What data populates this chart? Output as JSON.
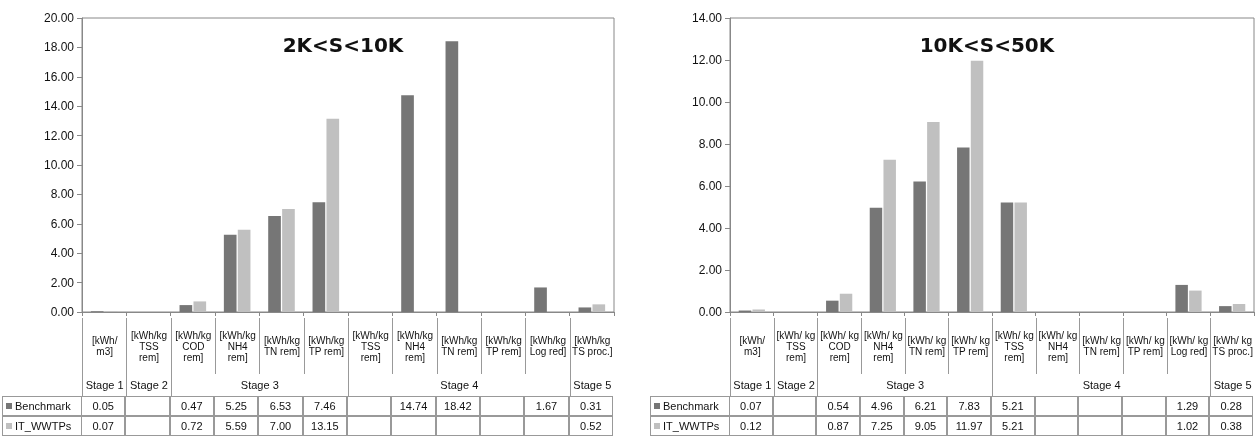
{
  "chart_data": [
    {
      "type": "bar",
      "title": "2K<S<10K",
      "categories": [
        "[kWh/ m3]",
        "[kWh/kg TSS rem]",
        "[kWh/kg COD rem]",
        "[kWh/kg NH4 rem]",
        "[kWh/kg TN rem]",
        "[kWh/kg TP rem]",
        "[kWh/kg TSS rem]",
        "[kWh/kg NH4 rem]",
        "[kWh/kg TN rem]",
        "[kWh/kg TP rem]",
        "[kWh/kg Log red]",
        "[kWh/kg TS proc.]"
      ],
      "series": [
        {
          "name": "Benchmark",
          "color": "#767676",
          "values": [
            0.05,
            null,
            0.47,
            5.25,
            6.53,
            7.46,
            null,
            14.74,
            18.42,
            null,
            1.67,
            0.31
          ],
          "value_labels": [
            "0.05",
            null,
            "0.47",
            "5.25",
            "6.53",
            "7.46",
            null,
            "14.74",
            "18.42",
            null,
            "1.67",
            "0.31"
          ]
        },
        {
          "name": "IT_WWTPs",
          "color": "#c0c0c0",
          "values": [
            0.07,
            null,
            0.72,
            5.59,
            7.0,
            13.15,
            null,
            null,
            null,
            null,
            null,
            0.52
          ],
          "value_labels": [
            "0.07",
            null,
            "0.72",
            "5.59",
            "7.00",
            "13.15",
            null,
            null,
            null,
            null,
            null,
            "0.52"
          ]
        }
      ],
      "ylim": [
        0,
        20
      ],
      "yticks": [
        {
          "value": 0,
          "label": "0.00"
        },
        {
          "value": 2,
          "label": "2.00"
        },
        {
          "value": 4,
          "label": "4.00"
        },
        {
          "value": 6,
          "label": "6.00"
        },
        {
          "value": 8,
          "label": "8.00"
        },
        {
          "value": 10,
          "label": "10.00"
        },
        {
          "value": 12,
          "label": "12.00"
        },
        {
          "value": 14,
          "label": "14.00"
        },
        {
          "value": 16,
          "label": "16.00"
        },
        {
          "value": 18,
          "label": "18.00"
        },
        {
          "value": 20,
          "label": "20.00"
        }
      ],
      "legend": "bottom",
      "annotations": [
        "Stage 1",
        "Stage 2",
        "Stage 3",
        "Stage 4",
        "Stage 5"
      ]
    },
    {
      "type": "bar",
      "title": "10K<S<50K",
      "categories": [
        "[kWh/ m3]",
        "[kWh/ kg TSS rem]",
        "[kWh/ kg COD rem]",
        "[kWh/ kg NH4 rem]",
        "[kWh/ kg TN rem]",
        "[kWh/ kg TP rem]",
        "[kWh/ kg TSS rem]",
        "[kWh/ kg NH4 rem]",
        "[kWh/ kg TN rem]",
        "[kWh/ kg TP rem]",
        "[kWh/ kg Log red]",
        "[kWh/ kg TS proc.]"
      ],
      "series": [
        {
          "name": "Benchmark",
          "color": "#767676",
          "values": [
            0.07,
            null,
            0.54,
            4.96,
            6.21,
            7.83,
            5.21,
            null,
            null,
            null,
            1.29,
            0.28
          ],
          "value_labels": [
            "0.07",
            null,
            "0.54",
            "4.96",
            "6.21",
            "7.83",
            "5.21",
            null,
            null,
            null,
            "1.29",
            "0.28"
          ]
        },
        {
          "name": "IT_WWTPs",
          "color": "#c0c0c0",
          "values": [
            0.12,
            null,
            0.87,
            7.25,
            9.05,
            11.97,
            5.21,
            null,
            null,
            null,
            1.02,
            0.38
          ],
          "value_labels": [
            "0.12",
            null,
            "0.87",
            "7.25",
            "9.05",
            "11.97",
            "5.21",
            null,
            null,
            null,
            "1.02",
            "0.38"
          ]
        }
      ],
      "ylim": [
        0,
        14
      ],
      "yticks": [
        {
          "value": 0,
          "label": "0.00"
        },
        {
          "value": 2,
          "label": "2.00"
        },
        {
          "value": 4,
          "label": "4.00"
        },
        {
          "value": 6,
          "label": "6.00"
        },
        {
          "value": 8,
          "label": "8.00"
        },
        {
          "value": 10,
          "label": "10.00"
        },
        {
          "value": 12,
          "label": "12.00"
        },
        {
          "value": 14,
          "label": "14.00"
        }
      ],
      "legend": "bottom",
      "annotations": [
        "Stage 1",
        "Stage 2",
        "Stage 3",
        "Stage 4",
        "Stage 5"
      ]
    }
  ]
}
